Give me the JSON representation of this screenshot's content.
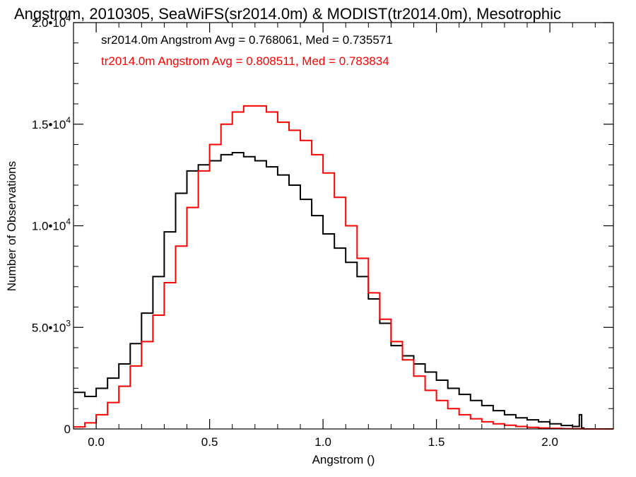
{
  "chart_data": {
    "type": "line",
    "title": "Angstrom, 2010305, SeaWiFS(sr2014.0m) & MODIST(tr2014.0m), Mesotrophic",
    "xlabel": "Angstrom ()",
    "ylabel": "Number of Observations",
    "xlim": [
      -0.1,
      2.28
    ],
    "ylim": [
      0,
      20000
    ],
    "x_ticks": [
      0.0,
      0.5,
      1.0,
      1.5,
      2.0
    ],
    "x_tick_labels": [
      "0.0",
      "0.5",
      "1.0",
      "1.5",
      "2.0"
    ],
    "y_ticks": [
      0,
      5000,
      10000,
      15000,
      20000
    ],
    "y_tick_labels": [
      {
        "mant": "0",
        "exp": ""
      },
      {
        "mant": "5.0•10",
        "exp": "3"
      },
      {
        "mant": "1.0•10",
        "exp": "4"
      },
      {
        "mant": "1.5•10",
        "exp": "4"
      },
      {
        "mant": "2.0•10",
        "exp": "4"
      }
    ],
    "grid": false,
    "legend_placement": "top-left",
    "series": [
      {
        "name": "sr2014.0m Angstrom Avg = 0.768061, Med = 0.735571",
        "color": "#000000",
        "style": "step",
        "x": [
          -0.1,
          -0.05,
          0.0,
          0.05,
          0.1,
          0.15,
          0.2,
          0.25,
          0.3,
          0.35,
          0.4,
          0.45,
          0.5,
          0.55,
          0.6,
          0.65,
          0.7,
          0.75,
          0.8,
          0.85,
          0.9,
          0.95,
          1.0,
          1.05,
          1.1,
          1.15,
          1.2,
          1.25,
          1.3,
          1.35,
          1.4,
          1.45,
          1.5,
          1.55,
          1.6,
          1.65,
          1.7,
          1.75,
          1.8,
          1.85,
          1.9,
          1.95,
          2.0,
          2.05,
          2.1,
          2.13,
          2.14,
          2.15,
          2.28
        ],
        "y": [
          1800,
          1600,
          2000,
          2500,
          3200,
          4200,
          5700,
          7500,
          9700,
          11600,
          12700,
          13000,
          13200,
          13500,
          13600,
          13400,
          13200,
          12900,
          12500,
          12000,
          11300,
          10500,
          9600,
          8900,
          8200,
          7500,
          6400,
          5200,
          4100,
          3600,
          3200,
          2800,
          2400,
          2000,
          1700,
          1400,
          1150,
          900,
          700,
          550,
          450,
          350,
          250,
          170,
          120,
          700,
          50,
          0,
          0
        ]
      },
      {
        "name": "tr2014.0m Angstrom Avg = 0.808511, Med = 0.783834",
        "color": "#ff0000",
        "style": "step",
        "x": [
          -0.1,
          -0.05,
          0.0,
          0.05,
          0.1,
          0.15,
          0.2,
          0.25,
          0.3,
          0.35,
          0.4,
          0.45,
          0.5,
          0.55,
          0.6,
          0.65,
          0.7,
          0.75,
          0.8,
          0.85,
          0.9,
          0.95,
          1.0,
          1.05,
          1.1,
          1.15,
          1.2,
          1.25,
          1.3,
          1.35,
          1.4,
          1.45,
          1.5,
          1.55,
          1.6,
          1.65,
          1.7,
          1.75,
          1.8,
          1.85,
          1.9,
          1.95,
          2.0,
          2.05,
          2.1,
          2.15,
          2.28
        ],
        "y": [
          100,
          300,
          700,
          1300,
          2100,
          3100,
          4300,
          5600,
          7200,
          9000,
          10900,
          12700,
          14000,
          15000,
          15600,
          15900,
          15900,
          15600,
          15100,
          14700,
          14200,
          13500,
          12600,
          11400,
          10000,
          8400,
          6700,
          5400,
          4300,
          3400,
          2600,
          1900,
          1400,
          1000,
          700,
          500,
          350,
          250,
          180,
          120,
          80,
          50,
          30,
          15,
          10,
          0,
          0
        ]
      }
    ]
  }
}
